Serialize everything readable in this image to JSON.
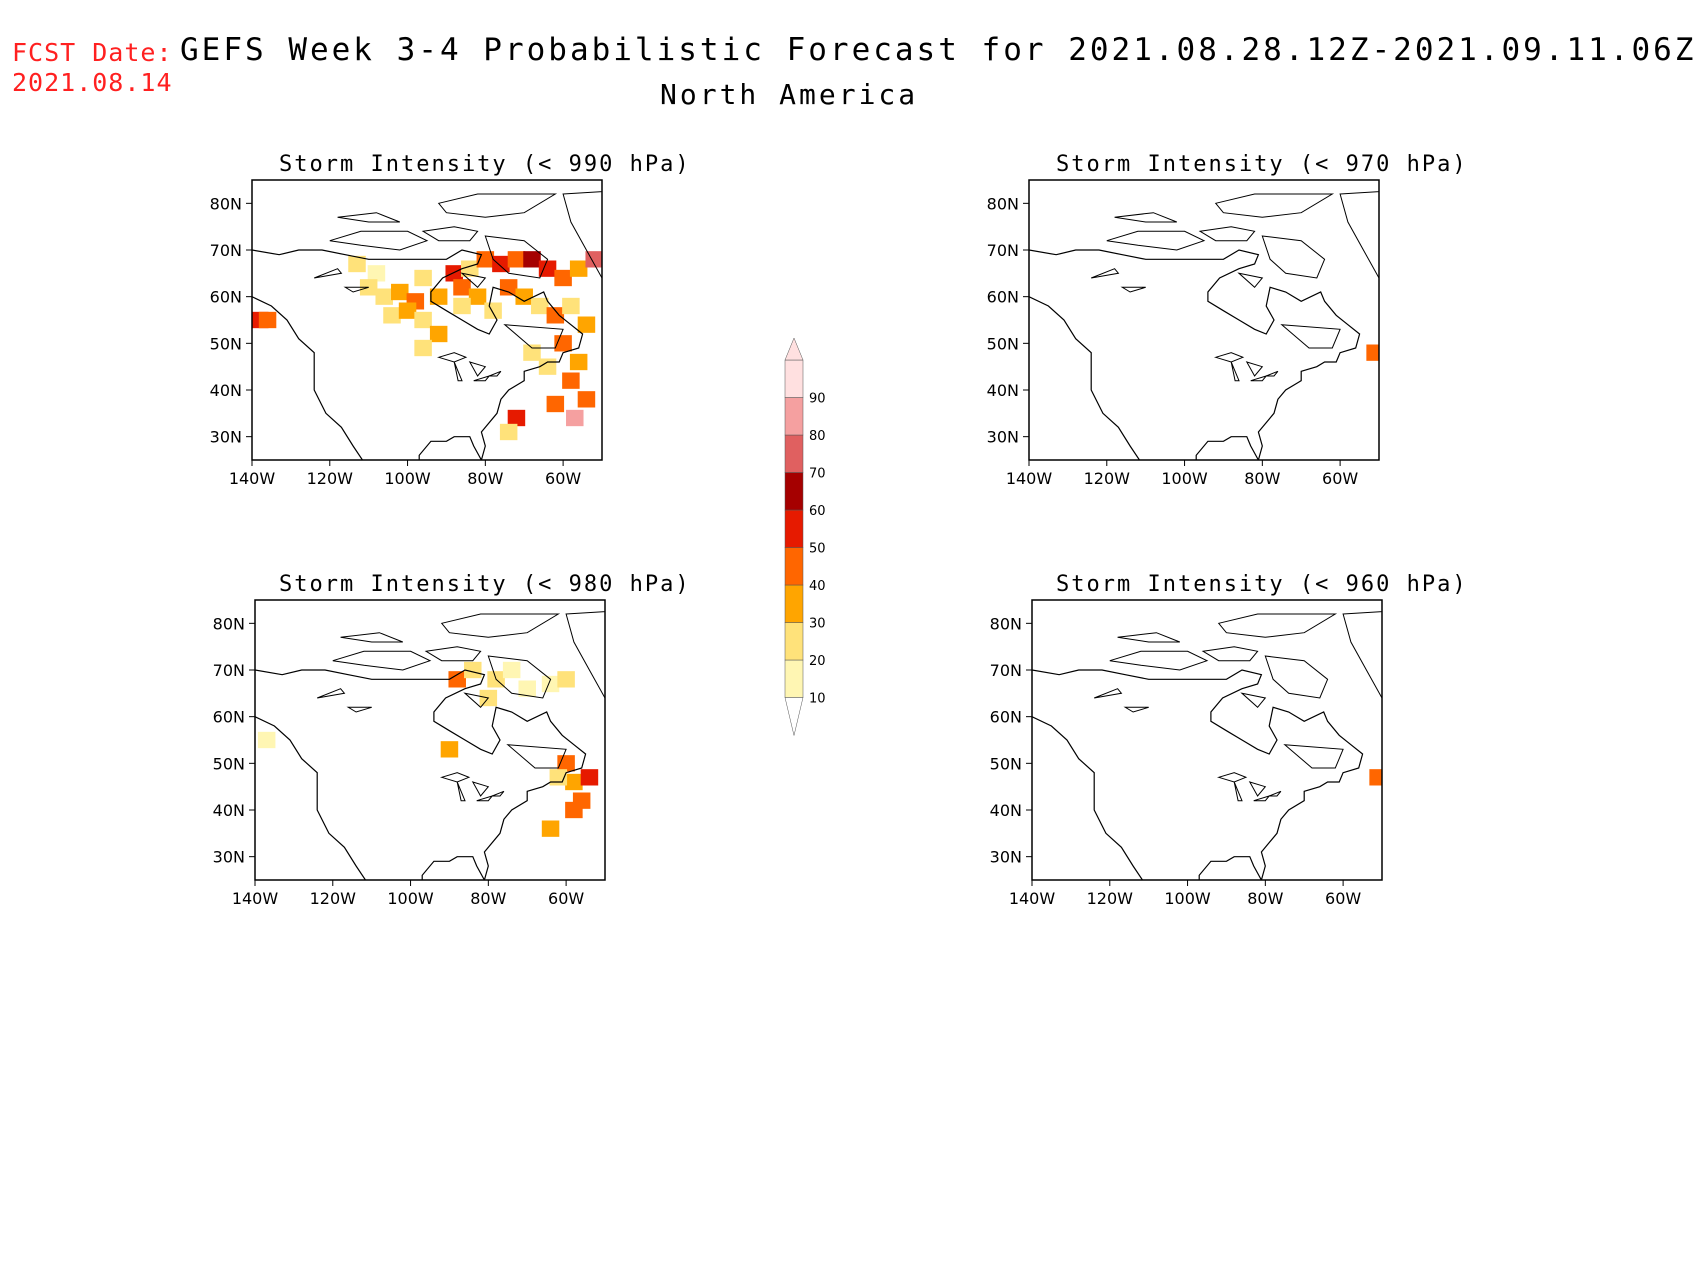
{
  "header": {
    "fcst_label": "FCST Date:",
    "fcst_date": "2021.08.14",
    "title": "GEFS Week 3-4 Probabilistic Forecast for 2021.08.28.12Z-2021.09.11.06Z",
    "subtitle": "North America"
  },
  "panels": [
    {
      "id": "p990",
      "title": "Storm Intensity (< 990 hPa)"
    },
    {
      "id": "p970",
      "title": "Storm Intensity (< 970 hPa)"
    },
    {
      "id": "p980",
      "title": "Storm Intensity (< 980 hPa)"
    },
    {
      "id": "p960",
      "title": "Storm Intensity (< 960 hPa)"
    }
  ],
  "axes": {
    "lat_labels": [
      "80N",
      "70N",
      "60N",
      "50N",
      "40N",
      "30N"
    ],
    "lat_values": [
      80,
      70,
      60,
      50,
      40,
      30
    ],
    "lon_labels": [
      "140W",
      "120W",
      "100W",
      "80W",
      "60W"
    ],
    "lon_values": [
      -140,
      -120,
      -100,
      -80,
      -60
    ],
    "lon_range": [
      -140,
      -50
    ],
    "lat_range": [
      25,
      85
    ]
  },
  "colorbar": {
    "labels": [
      "10",
      "20",
      "30",
      "40",
      "50",
      "60",
      "70",
      "80",
      "90"
    ],
    "colors": [
      "#fff6b3",
      "#ffe27a",
      "#ffa500",
      "#ff6600",
      "#e61a00",
      "#a50000",
      "#e06060",
      "#f5a0a0",
      "#ffe0e0"
    ]
  },
  "chart_data": {
    "type": "heatmap",
    "units": "probability (%)",
    "maps": {
      "p990": [
        [
          -138,
          55,
          50
        ],
        [
          -136,
          55,
          40
        ],
        [
          -113,
          67,
          20
        ],
        [
          -108,
          65,
          10
        ],
        [
          -110,
          62,
          20
        ],
        [
          -106,
          60,
          20
        ],
        [
          -102,
          61,
          30
        ],
        [
          -98,
          59,
          40
        ],
        [
          -96,
          64,
          20
        ],
        [
          -104,
          56,
          20
        ],
        [
          -100,
          57,
          30
        ],
        [
          -96,
          55,
          20
        ],
        [
          -92,
          60,
          30
        ],
        [
          -88,
          65,
          50
        ],
        [
          -86,
          62,
          40
        ],
        [
          -84,
          66,
          20
        ],
        [
          -80,
          68,
          40
        ],
        [
          -76,
          67,
          50
        ],
        [
          -72,
          68,
          40
        ],
        [
          -68,
          68,
          60
        ],
        [
          -64,
          66,
          50
        ],
        [
          -60,
          64,
          40
        ],
        [
          -56,
          66,
          30
        ],
        [
          -52,
          68,
          70
        ],
        [
          -82,
          60,
          30
        ],
        [
          -78,
          57,
          20
        ],
        [
          -74,
          62,
          40
        ],
        [
          -70,
          60,
          30
        ],
        [
          -66,
          58,
          20
        ],
        [
          -62,
          56,
          40
        ],
        [
          -58,
          58,
          20
        ],
        [
          -54,
          54,
          30
        ],
        [
          -60,
          50,
          40
        ],
        [
          -56,
          46,
          30
        ],
        [
          -58,
          42,
          40
        ],
        [
          -54,
          38,
          40
        ],
        [
          -57,
          34,
          80
        ],
        [
          -62,
          37,
          40
        ],
        [
          -72,
          34,
          50
        ],
        [
          -74,
          31,
          20
        ],
        [
          -68,
          48,
          20
        ],
        [
          -92,
          52,
          30
        ],
        [
          -96,
          49,
          20
        ],
        [
          -64,
          45,
          20
        ],
        [
          -86,
          58,
          20
        ]
      ],
      "p980": [
        [
          -137,
          55,
          10
        ],
        [
          -88,
          68,
          40
        ],
        [
          -84,
          70,
          20
        ],
        [
          -78,
          68,
          20
        ],
        [
          -74,
          70,
          10
        ],
        [
          -70,
          66,
          10
        ],
        [
          -64,
          67,
          10
        ],
        [
          -60,
          68,
          20
        ],
        [
          -80,
          64,
          20
        ],
        [
          -90,
          53,
          30
        ],
        [
          -60,
          50,
          40
        ],
        [
          -58,
          46,
          30
        ],
        [
          -56,
          42,
          40
        ],
        [
          -58,
          40,
          40
        ],
        [
          -54,
          47,
          50
        ],
        [
          -64,
          36,
          30
        ],
        [
          -62,
          47,
          20
        ]
      ],
      "p970": [
        [
          -51,
          48,
          40
        ]
      ],
      "p960": [
        [
          -51,
          47,
          40
        ]
      ]
    }
  }
}
